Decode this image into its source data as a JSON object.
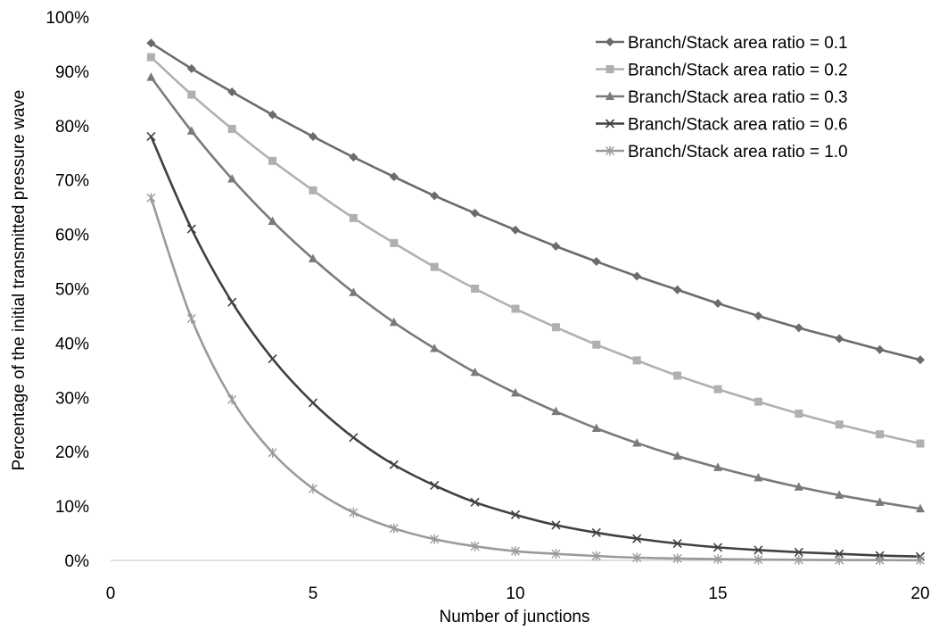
{
  "chart_data": {
    "type": "line",
    "title": "",
    "xlabel": "Number of junctions",
    "ylabel": "Percentage of the initial transmitted pressure wave",
    "xlim": [
      0,
      20
    ],
    "ylim": [
      0,
      100
    ],
    "x_ticks": [
      "0",
      "5",
      "10",
      "15",
      "20"
    ],
    "y_ticks": [
      "0%",
      "10%",
      "20%",
      "30%",
      "40%",
      "50%",
      "60%",
      "70%",
      "80%",
      "90%",
      "100%"
    ],
    "grid": false,
    "legend_position": "top-right",
    "x": [
      1,
      2,
      3,
      4,
      5,
      6,
      7,
      8,
      9,
      10,
      11,
      12,
      13,
      14,
      15,
      16,
      17,
      18,
      19,
      20
    ],
    "series": [
      {
        "name": "Branch/Stack area ratio = 0.1",
        "color": "#6b6b6b",
        "marker": "diamond",
        "values": [
          95.2,
          90.5,
          86.2,
          82.0,
          78.0,
          74.2,
          70.6,
          67.1,
          63.9,
          60.8,
          57.8,
          55.0,
          52.3,
          49.8,
          47.3,
          45.0,
          42.8,
          40.8,
          38.8,
          36.9
        ]
      },
      {
        "name": "Branch/Stack area ratio = 0.2",
        "color": "#b0b0b0",
        "marker": "square",
        "values": [
          92.6,
          85.7,
          79.4,
          73.5,
          68.1,
          63.0,
          58.4,
          54.0,
          50.0,
          46.3,
          42.9,
          39.7,
          36.8,
          34.0,
          31.5,
          29.2,
          27.0,
          25.0,
          23.2,
          21.5
        ]
      },
      {
        "name": "Branch/Stack area ratio = 0.3",
        "color": "#7a7a7a",
        "marker": "triangle",
        "values": [
          88.9,
          79.0,
          70.2,
          62.4,
          55.5,
          49.3,
          43.8,
          39.0,
          34.6,
          30.8,
          27.4,
          24.3,
          21.6,
          19.2,
          17.1,
          15.2,
          13.5,
          12.0,
          10.7,
          9.5
        ]
      },
      {
        "name": "Branch/Stack area ratio = 0.6",
        "color": "#404040",
        "marker": "x",
        "values": [
          78.0,
          61.0,
          47.5,
          37.1,
          29.0,
          22.6,
          17.6,
          13.8,
          10.7,
          8.4,
          6.5,
          5.1,
          4.0,
          3.1,
          2.4,
          1.9,
          1.5,
          1.2,
          0.9,
          0.7
        ]
      },
      {
        "name": "Branch/Stack area ratio = 1.0",
        "color": "#9a9a9a",
        "marker": "star",
        "values": [
          66.7,
          44.5,
          29.6,
          19.8,
          13.2,
          8.8,
          5.9,
          3.9,
          2.6,
          1.7,
          1.2,
          0.8,
          0.5,
          0.35,
          0.23,
          0.15,
          0.1,
          0.07,
          0.05,
          0.03
        ]
      }
    ]
  }
}
